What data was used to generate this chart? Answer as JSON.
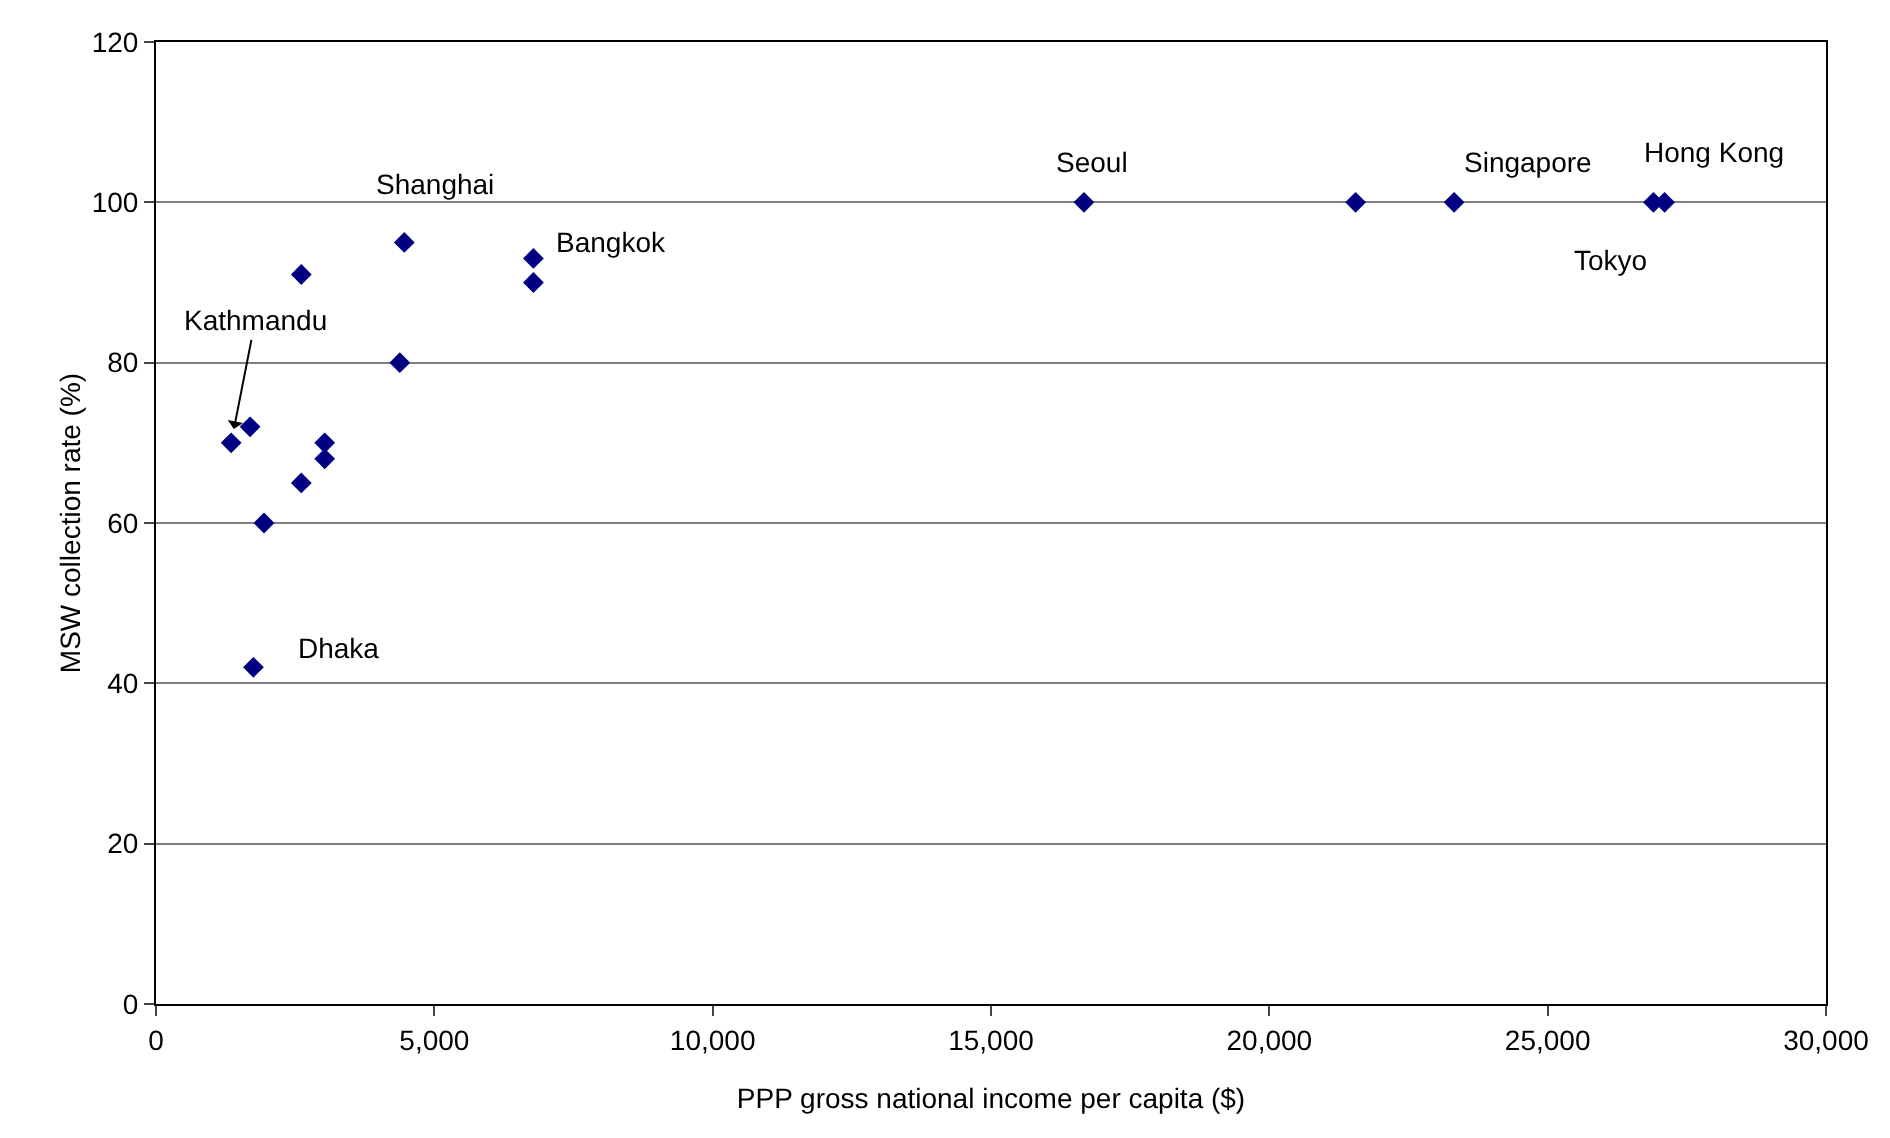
{
  "chart_data": {
    "type": "scatter",
    "xlabel": "PPP gross national income per capita ($)",
    "ylabel": "MSW collection rate (%)",
    "series": [
      {
        "color": "#000080",
        "x": [
          1350,
          1690,
          1940,
          1750,
          2610,
          2610,
          3030,
          3030,
          4380,
          4460,
          6780,
          6780,
          16670,
          21550,
          23320,
          26900,
          27100
        ],
        "values": [
          70,
          72,
          60,
          42,
          91,
          65,
          70,
          68,
          80,
          95,
          93,
          90,
          100,
          100,
          100,
          100,
          100
        ]
      }
    ],
    "xlim": [
      0,
      30000
    ],
    "xticks": [
      0,
      {
        "value": 5000,
        "label": "5,000"
      },
      {
        "value": 10000,
        "label": "10,000"
      },
      {
        "value": 15000,
        "label": "15,000"
      },
      {
        "value": 20000,
        "label": "20,000"
      },
      {
        "value": 25000,
        "label": "25,000"
      },
      {
        "value": 30000,
        "label": "30,000"
      }
    ],
    "ylim": [
      0,
      120
    ],
    "yticks": [
      0,
      20,
      40,
      60,
      80,
      100,
      120
    ],
    "grid": "y",
    "marker": "diamond",
    "annotations": [
      {
        "text": "Shanghai",
        "x": 4460,
        "y": 95
      },
      {
        "text": "Bangkok",
        "x": 6780,
        "y": 93
      },
      {
        "text": "Seoul",
        "x": 16670,
        "y": 100
      },
      {
        "text": "Singapore",
        "x": 23320,
        "y": 100
      },
      {
        "text": "Hong Kong",
        "x": 27100,
        "y": 100
      },
      {
        "text": "Tokyo",
        "x": 26900,
        "y": 100
      },
      {
        "text": "Dhaka",
        "x": 1750,
        "y": 42
      },
      {
        "text": "Kathmandu",
        "x": 1350,
        "y": 70
      }
    ]
  }
}
